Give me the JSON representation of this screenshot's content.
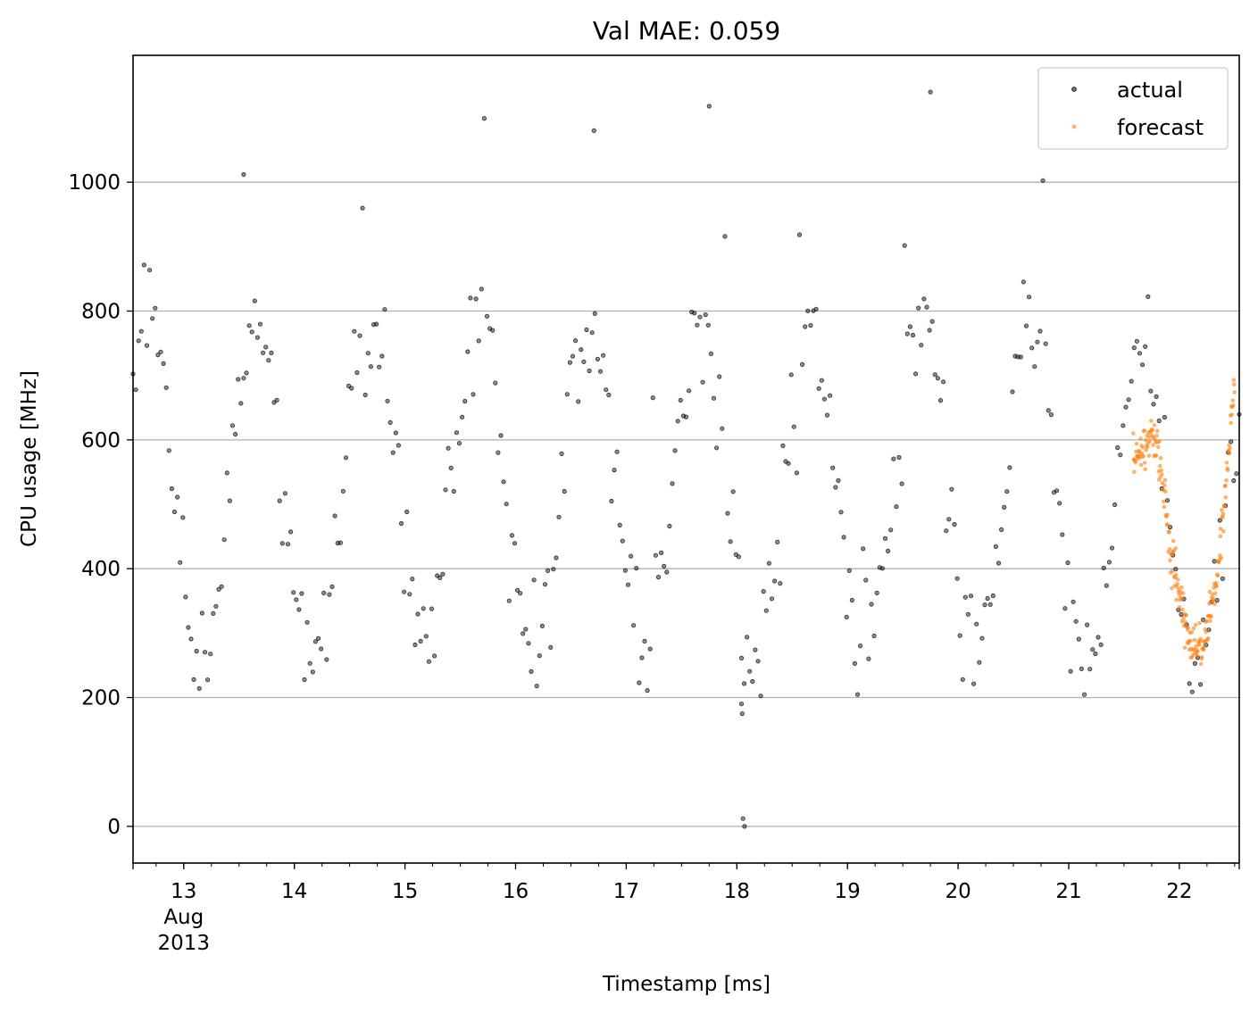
{
  "chart_data": {
    "type": "scatter",
    "title": "Val MAE: 0.059",
    "xlabel": "Timestamp [ms]",
    "ylabel": "CPU usage [MHz]",
    "x_axis": {
      "type": "date",
      "range": [
        "2013-08-12T13:00",
        "2013-08-22T13:00"
      ],
      "ticks": [
        {
          "date": "2013-08-13",
          "label": "13",
          "sublabels": [
            "Aug",
            "2013"
          ]
        },
        {
          "date": "2013-08-14",
          "label": "14"
        },
        {
          "date": "2013-08-15",
          "label": "15"
        },
        {
          "date": "2013-08-16",
          "label": "16"
        },
        {
          "date": "2013-08-17",
          "label": "17"
        },
        {
          "date": "2013-08-18",
          "label": "18"
        },
        {
          "date": "2013-08-19",
          "label": "19"
        },
        {
          "date": "2013-08-20",
          "label": "20"
        },
        {
          "date": "2013-08-21",
          "label": "21"
        },
        {
          "date": "2013-08-22",
          "label": "22"
        }
      ]
    },
    "y_axis": {
      "range": [
        -57,
        1197
      ],
      "ticks": [
        0,
        200,
        400,
        600,
        800,
        1000
      ],
      "grid": true
    },
    "legend": {
      "position": "top-right",
      "entries": [
        "actual",
        "forecast"
      ]
    },
    "series": [
      {
        "name": "actual",
        "color": "#000000",
        "marker": "small hollow circle",
        "profile_note": "daily cycle",
        "days": [
          {
            "date": "2013-08-12",
            "min": 230,
            "max": 940
          },
          {
            "date": "2013-08-13",
            "min": 230,
            "max": 1012
          },
          {
            "date": "2013-08-14",
            "min": 220,
            "max": 875
          },
          {
            "date": "2013-08-15",
            "min": 235,
            "max": 970
          },
          {
            "date": "2013-08-16",
            "min": 240,
            "max": 1080
          },
          {
            "date": "2013-08-17",
            "min": 240,
            "max": 1118
          },
          {
            "date": "2013-08-18",
            "min": 0,
            "max": 915
          },
          {
            "date": "2013-08-19",
            "min": 240,
            "max": 1140
          },
          {
            "date": "2013-08-20",
            "min": 225,
            "max": 1040
          },
          {
            "date": "2013-08-21",
            "min": 200,
            "max": 870
          },
          {
            "date": "2013-08-22",
            "min": 215,
            "max": 840
          }
        ],
        "notable_points": [
          {
            "x": "2013-08-18T01:40",
            "y": 0
          },
          {
            "x": "2013-08-18T01:20",
            "y": 12
          },
          {
            "x": "2013-08-18T01:00",
            "y": 190
          },
          {
            "x": "2013-08-18T01:10",
            "y": 175
          },
          {
            "x": "2013-08-19T18:00",
            "y": 1140
          },
          {
            "x": "2013-08-17T18:00",
            "y": 1118
          },
          {
            "x": "2013-08-16T17:00",
            "y": 1080
          },
          {
            "x": "2013-08-13T13:00",
            "y": 1012
          }
        ]
      },
      {
        "name": "forecast",
        "color": "#ff7f0e",
        "marker": "small filled circle",
        "x_range": [
          "2013-08-21T14:00",
          "2013-08-22T13:00"
        ],
        "points": [
          {
            "x": "2013-08-21T14:00",
            "y": 580
          },
          {
            "x": "2013-08-21T16:00",
            "y": 575
          },
          {
            "x": "2013-08-21T18:00",
            "y": 610
          },
          {
            "x": "2013-08-21T20:00",
            "y": 560
          },
          {
            "x": "2013-08-21T22:00",
            "y": 430
          },
          {
            "x": "2013-08-22T00:00",
            "y": 360
          },
          {
            "x": "2013-08-22T02:00",
            "y": 290
          },
          {
            "x": "2013-08-22T04:00",
            "y": 270
          },
          {
            "x": "2013-08-22T06:00",
            "y": 300
          },
          {
            "x": "2013-08-22T08:00",
            "y": 380
          },
          {
            "x": "2013-08-22T10:00",
            "y": 520
          },
          {
            "x": "2013-08-22T12:00",
            "y": 690
          }
        ]
      }
    ]
  }
}
